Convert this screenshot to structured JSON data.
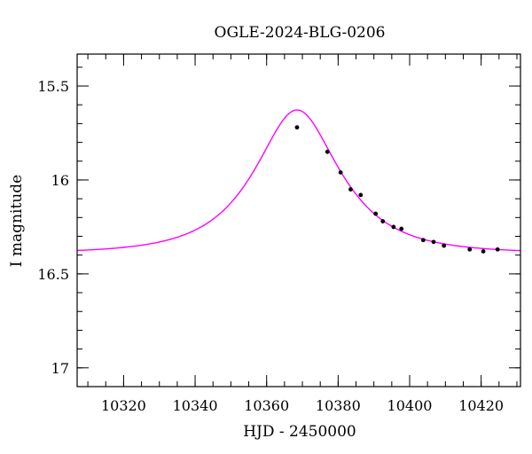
{
  "chart_data": {
    "type": "scatter",
    "title": "OGLE-2024-BLG-0206",
    "xlabel": "HJD - 2450000",
    "ylabel": "I magnitude",
    "xlim": [
      10307,
      10431
    ],
    "ylim": [
      17.1,
      15.33
    ],
    "y_inverted": true,
    "grid": false,
    "x_major_ticks": [
      10320,
      10340,
      10360,
      10380,
      10400,
      10420
    ],
    "x_minor_step": 5,
    "y_major_ticks": [
      15.5,
      16,
      16.5,
      17
    ],
    "y_minor_step": 0.1,
    "x_tick_labels": [
      "10320",
      "10340",
      "10360",
      "10380",
      "10400",
      "10420"
    ],
    "y_tick_labels": [
      "15.5",
      "16",
      "16.5",
      "17"
    ],
    "series": [
      {
        "kind": "points",
        "color": "#000000",
        "x": [
          10368.5,
          10377.0,
          10380.7,
          10383.5,
          10386.3,
          10390.5,
          10392.5,
          10395.5,
          10397.7,
          10403.8,
          10406.7,
          10409.6,
          10416.8,
          10420.6,
          10424.6
        ],
        "y": [
          15.72,
          15.85,
          15.96,
          16.05,
          16.08,
          16.18,
          16.22,
          16.25,
          16.26,
          16.32,
          16.33,
          16.35,
          16.37,
          16.38,
          16.37
        ],
        "yerr": [
          0.004,
          0.004,
          0.004,
          0.005,
          0.007,
          0.005,
          0.005,
          0.005,
          0.005,
          0.006,
          0.006,
          0.006,
          0.009,
          0.006,
          0.006
        ]
      },
      {
        "kind": "model",
        "color": "#ff00ff",
        "t0": 10368.5,
        "tE": 19.5,
        "u0": 0.55,
        "baseline": 16.39
      }
    ]
  }
}
